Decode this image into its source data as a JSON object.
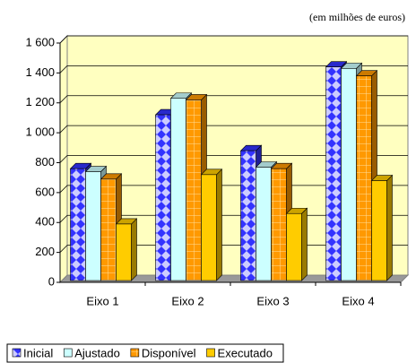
{
  "chart_data": {
    "type": "bar3d",
    "subtitle": "(em milhões de euros)",
    "categories": [
      "Eixo 1",
      "Eixo 2",
      "Eixo 3",
      "Eixo 4"
    ],
    "series": [
      {
        "name": "Inicial",
        "color": "#3333ff",
        "values": [
          760,
          1120,
          880,
          1440
        ]
      },
      {
        "name": "Ajustado",
        "color": "#ccffff",
        "values": [
          740,
          1230,
          770,
          1430
        ]
      },
      {
        "name": "Disponível",
        "color": "#ff9900",
        "values": [
          690,
          1220,
          760,
          1380
        ]
      },
      {
        "name": "Executado",
        "color": "#ffcc00",
        "values": [
          390,
          720,
          460,
          680
        ]
      }
    ],
    "ylim": [
      0,
      1600
    ],
    "yticks": [
      0,
      200,
      400,
      600,
      800,
      {
        "value": 1000,
        "label": "1 000"
      },
      {
        "value": 1200,
        "label": "1 200"
      },
      {
        "value": 1400,
        "label": "1 400"
      },
      {
        "value": 1600,
        "label": "1 600"
      }
    ],
    "grid": true,
    "legend": "bottom"
  }
}
